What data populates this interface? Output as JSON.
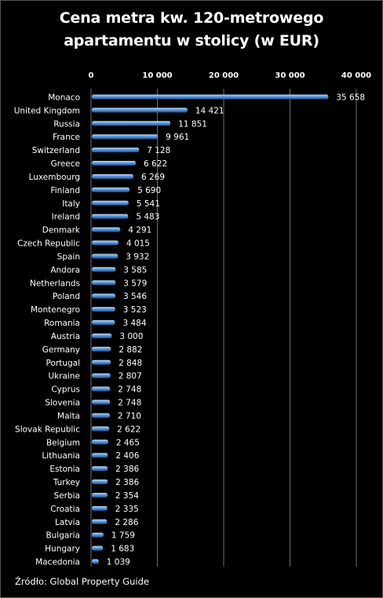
{
  "chart_data": {
    "type": "bar",
    "orientation": "horizontal",
    "title_lines": [
      "Cena metra kw. 120-metrowego",
      "apartamentu w stolicy (w EUR)"
    ],
    "x_ticks": [
      "0",
      "10 000",
      "20 000",
      "30 000",
      "40 000"
    ],
    "xlim": [
      0,
      40000
    ],
    "grid": true,
    "categories": [
      "Monaco",
      "United Kingdom",
      "Russia",
      "France",
      "Switzerland",
      "Greece",
      "Luxembourg",
      "Finland",
      "Italy",
      "Ireland",
      "Denmark",
      "Czech Republic",
      "Spain",
      "Andora",
      "Netherlands",
      "Poland",
      "Montenegro",
      "Romania",
      "Austria",
      "Germany",
      "Portugal",
      "Ukraine",
      "Cyprus",
      "Slovenia",
      "Malta",
      "Slovak Republic",
      "Belgium",
      "Lithuania",
      "Estonia",
      "Turkey",
      "Serbia",
      "Croatia",
      "Latvia",
      "Bulgaria",
      "Hungary",
      "Macedonia"
    ],
    "values": [
      35658,
      14421,
      11851,
      9961,
      7128,
      6622,
      6269,
      5690,
      5541,
      5483,
      4291,
      4015,
      3932,
      3585,
      3579,
      3546,
      3523,
      3484,
      3000,
      2882,
      2848,
      2807,
      2748,
      2748,
      2710,
      2622,
      2465,
      2406,
      2386,
      2386,
      2354,
      2335,
      2286,
      1759,
      1683,
      1039
    ],
    "value_labels": [
      "35 658",
      "14 421",
      "11 851",
      "9 961",
      "7 128",
      "6 622",
      "6 269",
      "5 690",
      "5 541",
      "5 483",
      "4 291",
      "4 015",
      "3 932",
      "3 585",
      "3 579",
      "3 546",
      "3 523",
      "3 484",
      "3 000",
      "2 882",
      "2 848",
      "2 807",
      "2 748",
      "2 748",
      "2 710",
      "2 622",
      "2 465",
      "2 406",
      "2 386",
      "2 386",
      "2 354",
      "2 335",
      "2 286",
      "1 759",
      "1 683",
      "1 039"
    ],
    "source": "Źródło: Global Property Guide",
    "colors": {
      "background": "#000000",
      "bar_light": "#bcd8f7",
      "bar_mid": "#5b9be0",
      "bar_dark": "#1f4f8a",
      "grid": "#6e6e6e",
      "text": "#ffffff"
    }
  }
}
